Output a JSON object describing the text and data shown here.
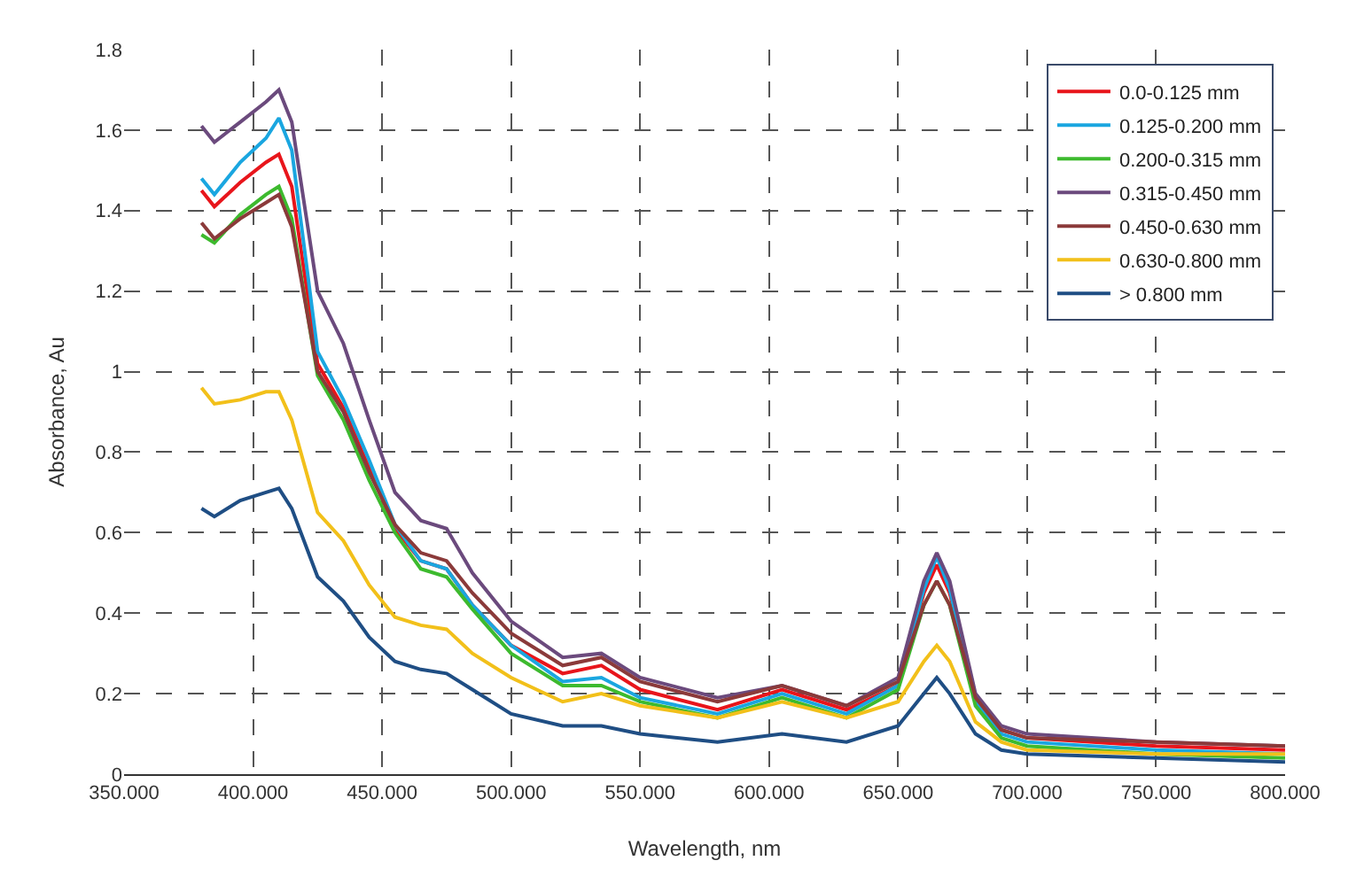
{
  "chart_data": {
    "type": "line",
    "xlabel": "Wavelength, nm",
    "ylabel": "Absorbance, Au",
    "x": [
      380,
      385,
      395,
      405,
      410,
      415,
      425,
      435,
      445,
      455,
      465,
      475,
      485,
      500,
      520,
      535,
      550,
      580,
      605,
      630,
      650,
      660,
      665,
      670,
      680,
      690,
      700,
      750,
      800
    ],
    "xlim": [
      350,
      800
    ],
    "xticks": [
      {
        "value": 350,
        "label": "350.000"
      },
      {
        "value": 400,
        "label": "400.000"
      },
      {
        "value": 450,
        "label": "450.000"
      },
      {
        "value": 500,
        "label": "500.000"
      },
      {
        "value": 550,
        "label": "550.000"
      },
      {
        "value": 600,
        "label": "600.000"
      },
      {
        "value": 650,
        "label": "650.000"
      },
      {
        "value": 700,
        "label": "700.000"
      },
      {
        "value": 750,
        "label": "750.000"
      },
      {
        "value": 800,
        "label": "800.000"
      }
    ],
    "ylim": [
      0,
      1.8
    ],
    "yticks": [
      0,
      0.2,
      0.4,
      0.6,
      0.8,
      1,
      1.2,
      1.4,
      1.6,
      1.8
    ],
    "grid": true,
    "legend": "top right",
    "marker": "none",
    "line_style": "solid",
    "series": [
      {
        "name": "0.0-0.125 mm",
        "color": "#e8151b",
        "values": [
          1.45,
          1.41,
          1.47,
          1.52,
          1.54,
          1.46,
          1.02,
          0.91,
          0.76,
          0.61,
          0.53,
          0.51,
          0.42,
          0.32,
          0.25,
          0.27,
          0.21,
          0.16,
          0.21,
          0.16,
          0.22,
          0.45,
          0.52,
          0.45,
          0.19,
          0.11,
          0.09,
          0.07,
          0.06
        ]
      },
      {
        "name": "0.125-0.200 mm",
        "color": "#1aa6e0",
        "values": [
          1.48,
          1.44,
          1.52,
          1.58,
          1.63,
          1.55,
          1.05,
          0.93,
          0.78,
          0.62,
          0.53,
          0.51,
          0.42,
          0.32,
          0.23,
          0.24,
          0.19,
          0.15,
          0.2,
          0.15,
          0.22,
          0.46,
          0.54,
          0.46,
          0.18,
          0.1,
          0.08,
          0.06,
          0.05
        ]
      },
      {
        "name": "0.200-0.315 mm",
        "color": "#3dba2e",
        "values": [
          1.34,
          1.32,
          1.39,
          1.44,
          1.46,
          1.38,
          0.99,
          0.88,
          0.73,
          0.6,
          0.51,
          0.49,
          0.41,
          0.3,
          0.22,
          0.22,
          0.18,
          0.14,
          0.19,
          0.14,
          0.21,
          0.42,
          0.48,
          0.42,
          0.17,
          0.09,
          0.07,
          0.05,
          0.04
        ]
      },
      {
        "name": "0.315-0.450 mm",
        "color": "#6b4a7d",
        "values": [
          1.61,
          1.57,
          1.62,
          1.67,
          1.7,
          1.62,
          1.2,
          1.07,
          0.88,
          0.7,
          0.63,
          0.61,
          0.5,
          0.38,
          0.29,
          0.3,
          0.24,
          0.19,
          0.22,
          0.17,
          0.24,
          0.48,
          0.55,
          0.48,
          0.2,
          0.12,
          0.1,
          0.08,
          0.07
        ]
      },
      {
        "name": "0.450-0.630 mm",
        "color": "#8b3a3a",
        "values": [
          1.37,
          1.33,
          1.38,
          1.42,
          1.44,
          1.36,
          1.0,
          0.9,
          0.75,
          0.62,
          0.55,
          0.53,
          0.45,
          0.35,
          0.27,
          0.29,
          0.23,
          0.18,
          0.22,
          0.17,
          0.23,
          0.42,
          0.48,
          0.42,
          0.19,
          0.11,
          0.09,
          0.08,
          0.07
        ]
      },
      {
        "name": "0.630-0.800 mm",
        "color": "#f2c01a",
        "values": [
          0.96,
          0.92,
          0.93,
          0.95,
          0.95,
          0.88,
          0.65,
          0.58,
          0.47,
          0.39,
          0.37,
          0.36,
          0.3,
          0.24,
          0.18,
          0.2,
          0.17,
          0.14,
          0.18,
          0.14,
          0.18,
          0.28,
          0.32,
          0.28,
          0.13,
          0.08,
          0.06,
          0.05,
          0.05
        ]
      },
      {
        "name": "> 0.800 mm",
        "color": "#1f4e84",
        "values": [
          0.66,
          0.64,
          0.68,
          0.7,
          0.71,
          0.66,
          0.49,
          0.43,
          0.34,
          0.28,
          0.26,
          0.25,
          0.21,
          0.15,
          0.12,
          0.12,
          0.1,
          0.08,
          0.1,
          0.08,
          0.12,
          0.2,
          0.24,
          0.2,
          0.1,
          0.06,
          0.05,
          0.04,
          0.03
        ]
      }
    ]
  }
}
